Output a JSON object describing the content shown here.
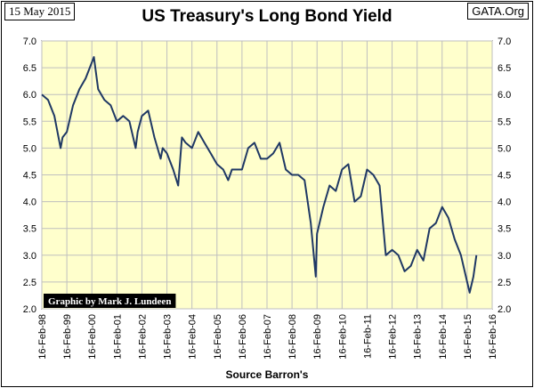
{
  "header": {
    "date": "15 May 2015",
    "source": "GATA.Org"
  },
  "chart_data": {
    "type": "line",
    "title": "US Treasury's Long Bond Yield",
    "xlabel": "Source Barron's",
    "ylabel": "",
    "ylim": [
      2.0,
      7.0
    ],
    "y_ticks": [
      "2.0",
      "2.5",
      "3.0",
      "3.5",
      "4.0",
      "4.5",
      "5.0",
      "5.5",
      "6.0",
      "6.5",
      "7.0"
    ],
    "x_ticks": [
      "16-Feb-98",
      "16-Feb-99",
      "16-Feb-00",
      "16-Feb-01",
      "16-Feb-02",
      "16-Feb-03",
      "16-Feb-04",
      "16-Feb-05",
      "16-Feb-06",
      "16-Feb-07",
      "16-Feb-08",
      "16-Feb-09",
      "16-Feb-10",
      "16-Feb-11",
      "16-Feb-12",
      "16-Feb-13",
      "16-Feb-14",
      "16-Feb-15",
      "16-Feb-16"
    ],
    "watermark": "Graphic by Mark J. Lundeen",
    "grid": true,
    "colors": {
      "plot_bg": "#ffffcc",
      "line": "#1f3864",
      "grid": "#bfbfbf"
    },
    "series": [
      {
        "name": "Long Bond Yield",
        "x": [
          1998.0,
          1998.25,
          1998.5,
          1998.75,
          1998.83,
          1999.0,
          1999.25,
          1999.5,
          1999.75,
          2000.0,
          2000.08,
          2000.25,
          2000.5,
          2000.75,
          2001.0,
          2001.25,
          2001.5,
          2001.75,
          2001.83,
          2002.0,
          2002.25,
          2002.5,
          2002.75,
          2002.83,
          2003.0,
          2003.25,
          2003.45,
          2003.6,
          2003.75,
          2004.0,
          2004.25,
          2004.5,
          2004.75,
          2005.0,
          2005.25,
          2005.45,
          2005.6,
          2005.75,
          2006.0,
          2006.25,
          2006.5,
          2006.75,
          2007.0,
          2007.25,
          2007.5,
          2007.75,
          2008.0,
          2008.25,
          2008.5,
          2008.75,
          2008.95,
          2009.0,
          2009.25,
          2009.5,
          2009.75,
          2010.0,
          2010.25,
          2010.5,
          2010.75,
          2011.0,
          2011.25,
          2011.5,
          2011.75,
          2012.0,
          2012.25,
          2012.5,
          2012.75,
          2013.0,
          2013.25,
          2013.5,
          2013.75,
          2014.0,
          2014.25,
          2014.5,
          2014.75,
          2015.0,
          2015.1,
          2015.25,
          2015.37
        ],
        "values": [
          6.0,
          5.9,
          5.6,
          5.0,
          5.2,
          5.3,
          5.8,
          6.1,
          6.3,
          6.6,
          6.7,
          6.1,
          5.9,
          5.8,
          5.5,
          5.6,
          5.5,
          5.0,
          5.3,
          5.6,
          5.7,
          5.2,
          4.8,
          5.0,
          4.9,
          4.6,
          4.3,
          5.2,
          5.1,
          5.0,
          5.3,
          5.1,
          4.9,
          4.7,
          4.6,
          4.4,
          4.6,
          4.6,
          4.6,
          5.0,
          5.1,
          4.8,
          4.8,
          4.9,
          5.1,
          4.6,
          4.5,
          4.5,
          4.4,
          3.6,
          2.6,
          3.4,
          3.9,
          4.3,
          4.2,
          4.6,
          4.7,
          4.0,
          4.1,
          4.6,
          4.5,
          4.3,
          3.0,
          3.1,
          3.0,
          2.7,
          2.8,
          3.1,
          2.9,
          3.5,
          3.6,
          3.9,
          3.7,
          3.3,
          3.0,
          2.5,
          2.3,
          2.6,
          3.0
        ]
      }
    ]
  }
}
